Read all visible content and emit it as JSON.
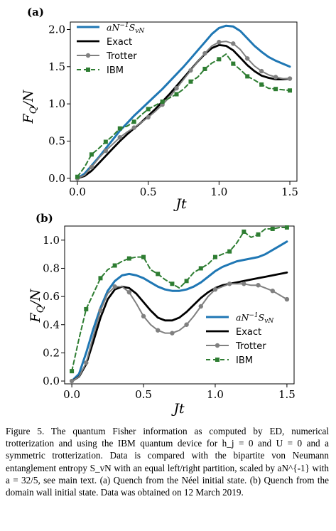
{
  "chart_data": [
    {
      "panel": "(a)",
      "type": "line",
      "xlabel": "Jt",
      "ylabel": "F_Q/N",
      "xlim": [
        -0.05,
        1.55
      ],
      "ylim": [
        -0.04,
        2.1
      ],
      "xticks": [
        0.0,
        0.5,
        1.0,
        1.5
      ],
      "xtick_labels": [
        "0.0",
        "0.5",
        "1.0",
        "1.5"
      ],
      "yticks": [
        0.0,
        0.5,
        1.0,
        1.5,
        2.0
      ],
      "ytick_labels": [
        "0.0",
        "0.5",
        "1.0",
        "1.5",
        "2.0"
      ],
      "legend_position": "upper-left",
      "series": [
        {
          "name": "aN^{-1}S_{vN}",
          "color": "#1f77b4",
          "style": "line",
          "x": [
            0.0,
            0.05,
            0.1,
            0.15,
            0.2,
            0.25,
            0.3,
            0.35,
            0.4,
            0.45,
            0.5,
            0.55,
            0.6,
            0.65,
            0.7,
            0.75,
            0.8,
            0.85,
            0.9,
            0.95,
            1.0,
            1.05,
            1.1,
            1.15,
            1.2,
            1.25,
            1.3,
            1.35,
            1.4,
            1.45,
            1.5
          ],
          "y": [
            0.0,
            0.06,
            0.17,
            0.28,
            0.4,
            0.52,
            0.64,
            0.74,
            0.84,
            0.93,
            1.02,
            1.11,
            1.2,
            1.3,
            1.4,
            1.5,
            1.61,
            1.72,
            1.83,
            1.94,
            2.02,
            2.05,
            2.04,
            1.98,
            1.88,
            1.78,
            1.7,
            1.63,
            1.58,
            1.54,
            1.5
          ]
        },
        {
          "name": "Exact",
          "color": "#000000",
          "style": "line",
          "x": [
            0.0,
            0.05,
            0.1,
            0.15,
            0.2,
            0.25,
            0.3,
            0.35,
            0.4,
            0.45,
            0.5,
            0.55,
            0.6,
            0.65,
            0.7,
            0.75,
            0.8,
            0.85,
            0.9,
            0.95,
            1.0,
            1.05,
            1.1,
            1.15,
            1.2,
            1.25,
            1.3,
            1.35,
            1.4,
            1.45,
            1.5
          ],
          "y": [
            0.0,
            0.03,
            0.1,
            0.2,
            0.3,
            0.4,
            0.5,
            0.59,
            0.67,
            0.75,
            0.84,
            0.93,
            1.03,
            1.13,
            1.24,
            1.35,
            1.46,
            1.57,
            1.67,
            1.75,
            1.79,
            1.78,
            1.72,
            1.62,
            1.52,
            1.44,
            1.38,
            1.35,
            1.33,
            1.33,
            1.34
          ]
        },
        {
          "name": "Trotter",
          "color": "#808080",
          "style": "line-circle",
          "x": [
            0.0,
            0.05,
            0.1,
            0.15,
            0.2,
            0.25,
            0.3,
            0.35,
            0.4,
            0.45,
            0.5,
            0.55,
            0.6,
            0.65,
            0.7,
            0.75,
            0.8,
            0.85,
            0.9,
            0.95,
            1.0,
            1.05,
            1.1,
            1.15,
            1.2,
            1.25,
            1.3,
            1.35,
            1.4,
            1.45,
            1.5
          ],
          "y": [
            0.0,
            0.04,
            0.15,
            0.27,
            0.37,
            0.46,
            0.55,
            0.62,
            0.68,
            0.75,
            0.82,
            0.9,
            0.99,
            1.09,
            1.21,
            1.33,
            1.45,
            1.57,
            1.68,
            1.78,
            1.83,
            1.84,
            1.81,
            1.73,
            1.61,
            1.51,
            1.44,
            1.39,
            1.36,
            1.34,
            1.34
          ]
        },
        {
          "name": "IBM",
          "color": "#2e7d32",
          "style": "dashed-square",
          "x": [
            0.0,
            0.05,
            0.1,
            0.15,
            0.2,
            0.25,
            0.3,
            0.35,
            0.4,
            0.45,
            0.5,
            0.55,
            0.6,
            0.65,
            0.7,
            0.75,
            0.8,
            0.85,
            0.9,
            0.95,
            1.0,
            1.05,
            1.1,
            1.15,
            1.2,
            1.25,
            1.3,
            1.35,
            1.4,
            1.45,
            1.5
          ],
          "y": [
            0.02,
            0.15,
            0.32,
            0.4,
            0.49,
            0.57,
            0.67,
            0.7,
            0.76,
            0.85,
            0.93,
            0.98,
            1.03,
            1.08,
            1.13,
            1.2,
            1.3,
            1.36,
            1.47,
            1.55,
            1.6,
            1.67,
            1.54,
            1.46,
            1.37,
            1.32,
            1.26,
            1.21,
            1.2,
            1.19,
            1.18
          ]
        }
      ]
    },
    {
      "panel": "(b)",
      "type": "line",
      "xlabel": "Jt",
      "ylabel": "F_Q/N",
      "xlim": [
        -0.05,
        1.55
      ],
      "ylim": [
        -0.02,
        1.1
      ],
      "xticks": [
        0.0,
        0.5,
        1.0,
        1.5
      ],
      "xtick_labels": [
        "0.0",
        "0.5",
        "1.0",
        "1.5"
      ],
      "yticks": [
        0.0,
        0.2,
        0.4,
        0.6,
        0.8,
        1.0
      ],
      "ytick_labels": [
        "0.0",
        "0.2",
        "0.4",
        "0.6",
        "0.8",
        "1.0"
      ],
      "legend_position": "lower-right",
      "series": [
        {
          "name": "aN^{-1}S_{vN}",
          "color": "#1f77b4",
          "style": "line",
          "x": [
            0.0,
            0.05,
            0.1,
            0.15,
            0.2,
            0.25,
            0.3,
            0.35,
            0.4,
            0.45,
            0.5,
            0.55,
            0.6,
            0.65,
            0.7,
            0.75,
            0.8,
            0.85,
            0.9,
            0.95,
            1.0,
            1.05,
            1.1,
            1.15,
            1.2,
            1.25,
            1.3,
            1.35,
            1.4,
            1.45,
            1.5
          ],
          "y": [
            0.0,
            0.05,
            0.2,
            0.37,
            0.52,
            0.64,
            0.71,
            0.75,
            0.76,
            0.75,
            0.73,
            0.7,
            0.67,
            0.65,
            0.64,
            0.64,
            0.65,
            0.67,
            0.7,
            0.74,
            0.78,
            0.81,
            0.83,
            0.85,
            0.86,
            0.87,
            0.88,
            0.9,
            0.93,
            0.96,
            0.99
          ]
        },
        {
          "name": "Exact",
          "color": "#000000",
          "style": "line",
          "x": [
            0.0,
            0.05,
            0.1,
            0.15,
            0.2,
            0.25,
            0.3,
            0.35,
            0.4,
            0.45,
            0.5,
            0.55,
            0.6,
            0.65,
            0.7,
            0.75,
            0.8,
            0.85,
            0.9,
            0.95,
            1.0,
            1.05,
            1.1,
            1.15,
            1.2,
            1.25,
            1.3,
            1.35,
            1.4,
            1.45,
            1.5
          ],
          "y": [
            0.0,
            0.03,
            0.12,
            0.28,
            0.45,
            0.58,
            0.65,
            0.67,
            0.66,
            0.62,
            0.56,
            0.5,
            0.45,
            0.43,
            0.43,
            0.45,
            0.49,
            0.54,
            0.59,
            0.63,
            0.66,
            0.68,
            0.69,
            0.7,
            0.71,
            0.72,
            0.73,
            0.74,
            0.75,
            0.76,
            0.77
          ]
        },
        {
          "name": "Trotter",
          "color": "#808080",
          "style": "line-circle",
          "x": [
            0.0,
            0.05,
            0.1,
            0.15,
            0.2,
            0.25,
            0.3,
            0.35,
            0.4,
            0.45,
            0.5,
            0.55,
            0.6,
            0.65,
            0.7,
            0.75,
            0.8,
            0.85,
            0.9,
            0.95,
            1.0,
            1.05,
            1.1,
            1.15,
            1.2,
            1.25,
            1.3,
            1.35,
            1.4,
            1.45,
            1.5
          ],
          "y": [
            0.0,
            0.03,
            0.13,
            0.32,
            0.5,
            0.62,
            0.67,
            0.67,
            0.63,
            0.55,
            0.46,
            0.4,
            0.36,
            0.34,
            0.34,
            0.36,
            0.4,
            0.46,
            0.53,
            0.6,
            0.65,
            0.67,
            0.69,
            0.69,
            0.69,
            0.68,
            0.68,
            0.66,
            0.64,
            0.61,
            0.58
          ]
        },
        {
          "name": "IBM",
          "color": "#2e7d32",
          "style": "dashed-square",
          "x": [
            0.0,
            0.05,
            0.1,
            0.15,
            0.2,
            0.25,
            0.3,
            0.35,
            0.4,
            0.45,
            0.5,
            0.55,
            0.6,
            0.65,
            0.7,
            0.75,
            0.8,
            0.85,
            0.9,
            0.95,
            1.0,
            1.05,
            1.1,
            1.15,
            1.2,
            1.25,
            1.3,
            1.35,
            1.4,
            1.45,
            1.5
          ],
          "y": [
            0.07,
            0.3,
            0.51,
            0.62,
            0.73,
            0.79,
            0.82,
            0.85,
            0.87,
            0.88,
            0.88,
            0.79,
            0.76,
            0.72,
            0.69,
            0.66,
            0.71,
            0.77,
            0.8,
            0.83,
            0.88,
            0.9,
            0.92,
            0.98,
            1.06,
            1.02,
            1.04,
            1.08,
            1.08,
            1.09,
            1.09
          ]
        }
      ]
    }
  ],
  "caption": "Figure 5. The quantum Fisher information as computed by ED, numerical trotterization and using the IBM quantum device for h_j = 0 and U = 0 and a symmetric trotterization. Data is compared with the bipartite von Neumann entanglement entropy S_vN with an equal left/right partition, scaled by aN^{-1} with a = 32/5, see main text. (a) Quench from the Néel initial state. (b) Quench from the domain wall initial state. Data was obtained on 12 March 2019."
}
